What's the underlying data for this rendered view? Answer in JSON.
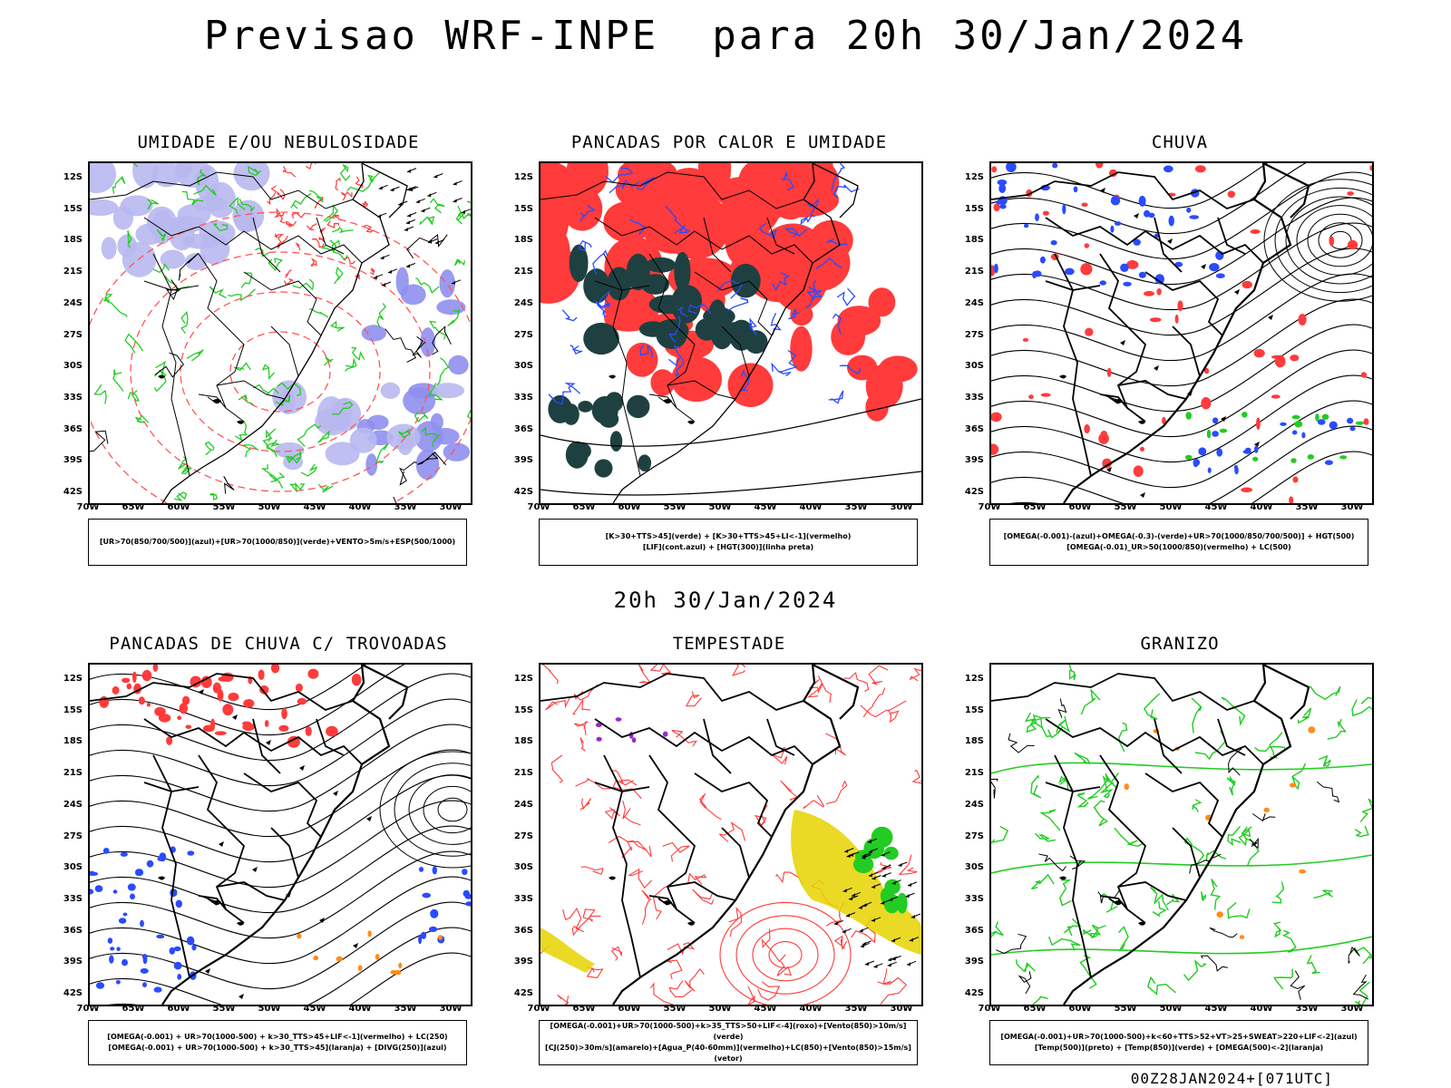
{
  "header": {
    "title": "Previsao WRF-INPE  para 20h 30/Jan/2024"
  },
  "subtitle": "20h 30/Jan/2024",
  "footer": "00Z28JAN2024+[071UTC]",
  "axes": {
    "lat_labels": [
      "12S",
      "15S",
      "18S",
      "21S",
      "24S",
      "27S",
      "30S",
      "33S",
      "36S",
      "39S",
      "42S"
    ],
    "lon_labels": [
      "70W",
      "65W",
      "60W",
      "55W",
      "50W",
      "45W",
      "40W",
      "35W",
      "30W"
    ]
  },
  "colors": {
    "red": "#ff3b3b",
    "green": "#22cc22",
    "blue": "#2a4bff",
    "lavender": "#b8b8f0",
    "darkteal": "#1f4040",
    "yellow": "#e6d300",
    "black": "#000000"
  },
  "panels": [
    {
      "title": "UMIDADE E/OU NEBULOSIDADE",
      "legend": [
        "[UR>70(850/700/500)](azul)+[UR>70(1000/850)](verde)+VENTO>5m/s+ESP(500/1000)"
      ]
    },
    {
      "title": "PANCADAS POR CALOR E UMIDADE",
      "legend": [
        "[K>30+TTS>45](verde) + [K>30+TTS>45+LI<-1](vermelho)",
        "[LIF](cont.azul) + [HGT(300)](linha preta)"
      ]
    },
    {
      "title": "CHUVA",
      "legend": [
        "[OMEGA(-0.001)-(azul)+OMEGA(-0.3)-(verde)+UR>70(1000/850/700/500)] + HGT(500)",
        "[OMEGA(-0.01)_UR>50(1000/850)(vermelho) + LC(500)"
      ]
    },
    {
      "title": "PANCADAS DE CHUVA C/ TROVOADAS",
      "legend": [
        "[OMEGA(-0.001) + UR>70(1000-500) + k>30_TTS>45+LIF<-1](vermelho) + LC(250)",
        "[OMEGA(-0.001) + UR>70(1000-500) + k>30_TTS>45](laranja) + [DIVG(250)](azul)"
      ]
    },
    {
      "title": "TEMPESTADE",
      "legend": [
        "[OMEGA(-0.001)+UR>70(1000-500)+k>35_TTS>50+LIF<-4](roxo)+[Vento(850)>10m/s](verde)",
        "[CJ(250)>30m/s](amarelo)+[Agua_P(40-60mm)](vermelho)+LC(850)+[Vento(850)>15m/s](vetor)"
      ]
    },
    {
      "title": "GRANIZO",
      "legend": [
        "[OMEGA(-0.001)+UR>70(1000-500)+k<60+TTS>52+VT>25+SWEAT>220+LIF<-2](azul)",
        "[Temp(500)](preto) + [Temp(850)](verde) + [OMEGA(500)<-2](laranja)"
      ]
    }
  ]
}
